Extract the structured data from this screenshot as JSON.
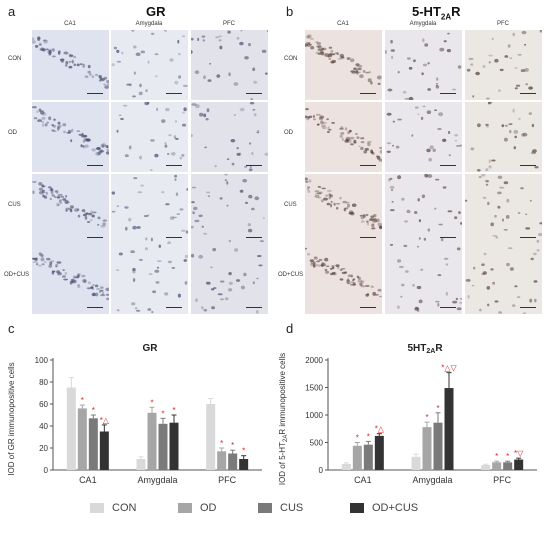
{
  "figure": {
    "panels": {
      "a": {
        "letter": "a",
        "title": "GR"
      },
      "b": {
        "letter": "b",
        "title": "5-HT",
        "title_sub": "2A",
        "title_tail": "R"
      },
      "c": {
        "letter": "c"
      },
      "d": {
        "letter": "d"
      }
    },
    "micrograph_columns": [
      "CA1",
      "Amygdala",
      "PFC"
    ],
    "micrograph_rows": [
      "CON",
      "OD",
      "CUS",
      "OD+CUS"
    ]
  },
  "legend": [
    {
      "label": "CON",
      "color": "#d9d9d9"
    },
    {
      "label": "OD",
      "color": "#a6a6a6"
    },
    {
      "label": "CUS",
      "color": "#7a7a7a"
    },
    {
      "label": "OD+CUS",
      "color": "#333333"
    }
  ],
  "chart_data": [
    {
      "type": "bar",
      "title": "GR",
      "ylabel": "IOD of GR immunopositive cells",
      "categories": [
        "CA1",
        "Amygdala",
        "PFC"
      ],
      "ylim": [
        0,
        100
      ],
      "yticks": [
        0,
        20,
        40,
        60,
        80,
        100
      ],
      "series": [
        {
          "name": "CON",
          "values": [
            75,
            10,
            60
          ],
          "errors": [
            9,
            2,
            5
          ]
        },
        {
          "name": "OD",
          "values": [
            56,
            52,
            17
          ],
          "errors": [
            3,
            5,
            3
          ]
        },
        {
          "name": "CUS",
          "values": [
            47,
            42,
            15
          ],
          "errors": [
            3,
            5,
            3
          ]
        },
        {
          "name": "OD+CUS",
          "values": [
            35,
            43,
            10
          ],
          "errors": [
            6,
            7,
            3
          ]
        }
      ],
      "annotations": [
        [
          "",
          "",
          ""
        ],
        [
          "*",
          "*",
          "*"
        ],
        [
          "*",
          "*",
          "*"
        ],
        [
          "*△",
          "*",
          "*"
        ]
      ]
    },
    {
      "type": "bar",
      "title": "5HT",
      "title_sub": "2A",
      "title_tail": "R",
      "ylabel": "IOD of 5-HT",
      "ylabel_sub": "2A",
      "ylabel_tail": "R immunopositive cells",
      "categories": [
        "CA1",
        "Amygdala",
        "PFC"
      ],
      "ylim": [
        0,
        2000
      ],
      "yticks": [
        0,
        500,
        1000,
        1500,
        2000
      ],
      "series": [
        {
          "name": "CON",
          "values": [
            110,
            240,
            90
          ],
          "errors": [
            20,
            50,
            15
          ]
        },
        {
          "name": "OD",
          "values": [
            440,
            780,
            140
          ],
          "errors": [
            60,
            90,
            20
          ]
        },
        {
          "name": "CUS",
          "values": [
            460,
            860,
            140
          ],
          "errors": [
            60,
            180,
            20
          ]
        },
        {
          "name": "OD+CUS",
          "values": [
            620,
            1490,
            190
          ],
          "errors": [
            40,
            280,
            25
          ]
        }
      ],
      "annotations": [
        [
          "",
          "",
          ""
        ],
        [
          "*",
          "*",
          "*"
        ],
        [
          "*",
          "*",
          "*"
        ],
        [
          "*△",
          "*△▽",
          "*▽"
        ]
      ]
    }
  ]
}
